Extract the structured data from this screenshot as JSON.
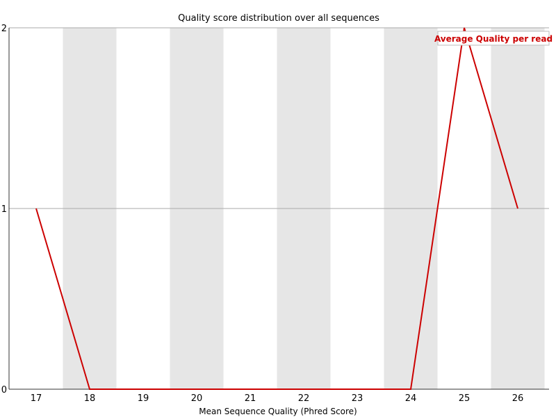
{
  "chart_data": {
    "type": "line",
    "title": "Quality score distribution over all sequences",
    "xlabel": "Mean Sequence Quality (Phred Score)",
    "ylabel": "",
    "categories": [
      "17",
      "18",
      "19",
      "20",
      "21",
      "22",
      "23",
      "24",
      "25",
      "26"
    ],
    "y_ticks": [
      "0",
      "1",
      "2"
    ],
    "ylim": [
      0,
      2
    ],
    "series": [
      {
        "name": "Average Quality per read",
        "values": [
          1,
          0,
          0,
          0,
          0,
          0,
          0,
          0,
          2,
          1
        ],
        "color": "#cc0000"
      }
    ],
    "grid": "horizontal",
    "band_color": "#e6e6e6",
    "legend_position": "top-right"
  }
}
